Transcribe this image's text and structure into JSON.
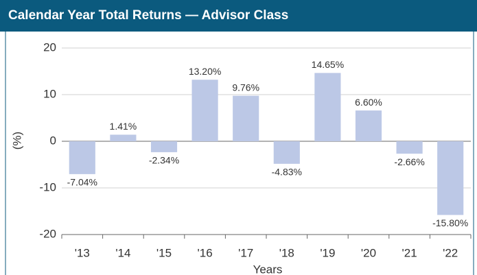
{
  "chart_data": {
    "type": "bar",
    "title": "Calendar Year Total Returns — Advisor Class",
    "categories": [
      "'13",
      "'14",
      "'15",
      "'16",
      "'17",
      "'18",
      "'19",
      "'20",
      "'21",
      "'22"
    ],
    "values": [
      -7.04,
      1.41,
      -2.34,
      13.2,
      9.76,
      -4.83,
      14.65,
      6.6,
      -2.66,
      -15.8
    ],
    "value_labels": [
      "-7.04%",
      "1.41%",
      "-2.34%",
      "13.20%",
      "9.76%",
      "-4.83%",
      "14.65%",
      "6.60%",
      "-2.66%",
      "-15.80%"
    ],
    "color": "#bcc8e6",
    "ylim": [
      -20,
      20
    ],
    "yticks": [
      -20,
      -10,
      0,
      10,
      20
    ],
    "grid": true,
    "y_label": "(%)",
    "x_label": "Years"
  }
}
